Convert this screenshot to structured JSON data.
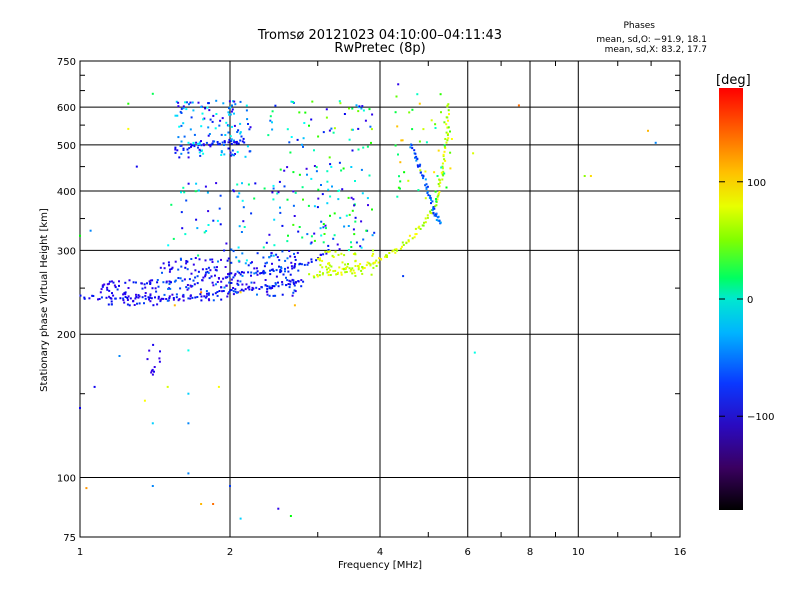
{
  "chart_data": {
    "type": "scatter",
    "title": "Tromsø 20121023 04:10:00–04:11:43",
    "subtitle": "RwPretec (8p)",
    "xlabel": "Frequency [MHz]",
    "ylabel": "Stationary phase Virtual Height [km]",
    "x_scale": "log",
    "y_scale": "log",
    "xlim": [
      1,
      16
    ],
    "ylim": [
      75,
      750
    ],
    "x_ticks": [
      1,
      2,
      4,
      6,
      8,
      10,
      16
    ],
    "x_tick_labels": [
      "1",
      "2",
      "4",
      "6",
      "8",
      "10",
      "16"
    ],
    "y_ticks": [
      75,
      100,
      200,
      300,
      400,
      500,
      600,
      750
    ],
    "y_tick_labels": [
      "75",
      "100",
      "200",
      "300",
      "400",
      "500",
      "600",
      "750"
    ],
    "grid": true,
    "legend_title": "Phases",
    "legend_lines": [
      "mean, sd,O: −91.9, 18.1",
      "mean, sd,X:  83.2, 17.7"
    ],
    "colorbar": {
      "label": "[deg]",
      "range": [
        -180,
        180
      ],
      "ticks": [
        -100,
        0,
        100
      ],
      "tick_labels": [
        "−100",
        "0",
        "100"
      ]
    },
    "traces": [
      {
        "name": "",
        "phase": -100,
        "x": [
          1.0,
          1.2,
          1.45,
          1.7,
          2.0,
          2.3,
          2.6,
          2.8
        ],
        "y": [
          240,
          237,
          238,
          240,
          245,
          250,
          256,
          260
        ]
      },
      {
        "name": "",
        "phase": -90,
        "x": [
          1.3,
          1.6,
          2.0,
          2.4,
          2.8,
          3.2
        ],
        "y": [
          255,
          260,
          265,
          270,
          280,
          300
        ]
      },
      {
        "name": "",
        "phase": 95,
        "x": [
          2.9,
          3.3,
          3.7,
          4.1,
          4.5,
          4.9,
          5.2,
          5.35,
          5.45,
          5.5
        ],
        "y": [
          265,
          270,
          278,
          290,
          310,
          340,
          380,
          440,
          520,
          620
        ]
      },
      {
        "name": "",
        "phase": -95,
        "x": [
          1.55,
          1.75,
          1.95,
          2.15
        ],
        "y": [
          490,
          500,
          505,
          510
        ]
      },
      {
        "name": "",
        "phase": -70,
        "x": [
          4.6,
          4.8,
          5.0,
          5.15,
          5.3
        ],
        "y": [
          500,
          450,
          400,
          360,
          340
        ]
      }
    ],
    "clusters": [
      {
        "x": [
          1.1,
          1.45
        ],
        "y": [
          230,
          260
        ],
        "phase": [
          -130,
          -80
        ],
        "n": 70
      },
      {
        "x": [
          1.45,
          2.0
        ],
        "y": [
          235,
          290
        ],
        "phase": [
          -130,
          -60
        ],
        "n": 110
      },
      {
        "x": [
          2.0,
          2.8
        ],
        "y": [
          240,
          300
        ],
        "phase": [
          -120,
          -60
        ],
        "n": 100
      },
      {
        "x": [
          1.55,
          2.2
        ],
        "y": [
          470,
          620
        ],
        "phase": [
          -120,
          -20
        ],
        "n": 130
      },
      {
        "x": [
          2.3,
          3.9
        ],
        "y": [
          470,
          620
        ],
        "phase": [
          -120,
          90
        ],
        "n": 60
      },
      {
        "x": [
          1.5,
          2.5
        ],
        "y": [
          280,
          420
        ],
        "phase": [
          -120,
          20
        ],
        "n": 70
      },
      {
        "x": [
          2.5,
          3.9
        ],
        "y": [
          300,
          460
        ],
        "phase": [
          -130,
          60
        ],
        "n": 110
      },
      {
        "x": [
          3.0,
          4.0
        ],
        "y": [
          265,
          300
        ],
        "phase": [
          80,
          110
        ],
        "n": 60
      },
      {
        "x": [
          4.2,
          5.6
        ],
        "y": [
          380,
          640
        ],
        "phase": [
          -20,
          130
        ],
        "n": 50
      },
      {
        "x": [
          1.35,
          1.45
        ],
        "y": [
          160,
          190
        ],
        "phase": [
          -130,
          -100
        ],
        "n": 12
      }
    ],
    "scattered": [
      {
        "x": 1.25,
        "y": 610,
        "phase": 50
      },
      {
        "x": 1.4,
        "y": 640,
        "phase": 20
      },
      {
        "x": 1.25,
        "y": 540,
        "phase": 110
      },
      {
        "x": 1.3,
        "y": 450,
        "phase": -100
      },
      {
        "x": 1.0,
        "y": 322,
        "phase": 40
      },
      {
        "x": 1.05,
        "y": 330,
        "phase": -60
      },
      {
        "x": 1.0,
        "y": 140,
        "phase": -100
      },
      {
        "x": 1.07,
        "y": 155,
        "phase": -100
      },
      {
        "x": 1.2,
        "y": 180,
        "phase": -60
      },
      {
        "x": 1.35,
        "y": 145,
        "phase": 110
      },
      {
        "x": 1.4,
        "y": 130,
        "phase": -40
      },
      {
        "x": 1.5,
        "y": 155,
        "phase": 100
      },
      {
        "x": 1.65,
        "y": 185,
        "phase": -20
      },
      {
        "x": 1.65,
        "y": 150,
        "phase": -40
      },
      {
        "x": 1.65,
        "y": 130,
        "phase": -60
      },
      {
        "x": 1.65,
        "y": 102,
        "phase": -60
      },
      {
        "x": 1.9,
        "y": 155,
        "phase": 110
      },
      {
        "x": 1.4,
        "y": 96,
        "phase": -60
      },
      {
        "x": 1.03,
        "y": 95,
        "phase": 140
      },
      {
        "x": 1.75,
        "y": 88,
        "phase": 130
      },
      {
        "x": 2.1,
        "y": 82,
        "phase": -40
      },
      {
        "x": 2.5,
        "y": 86,
        "phase": -110
      },
      {
        "x": 2.65,
        "y": 83,
        "phase": 40
      },
      {
        "x": 1.85,
        "y": 88,
        "phase": 150
      },
      {
        "x": 2.0,
        "y": 96,
        "phase": -80
      },
      {
        "x": 4.35,
        "y": 670,
        "phase": -110
      },
      {
        "x": 6.15,
        "y": 480,
        "phase": 100
      },
      {
        "x": 6.2,
        "y": 183,
        "phase": -20
      },
      {
        "x": 7.6,
        "y": 605,
        "phase": 150
      },
      {
        "x": 10.3,
        "y": 430,
        "phase": 80
      },
      {
        "x": 10.6,
        "y": 430,
        "phase": 120
      },
      {
        "x": 13.8,
        "y": 535,
        "phase": 130
      },
      {
        "x": 14.3,
        "y": 505,
        "phase": -60
      },
      {
        "x": 2.7,
        "y": 230,
        "phase": 130
      },
      {
        "x": 4.45,
        "y": 265,
        "phase": -80
      },
      {
        "x": 1.75,
        "y": 245,
        "phase": 150
      },
      {
        "x": 2.1,
        "y": 245,
        "phase": 120
      },
      {
        "x": 1.55,
        "y": 230,
        "phase": 130
      }
    ]
  }
}
